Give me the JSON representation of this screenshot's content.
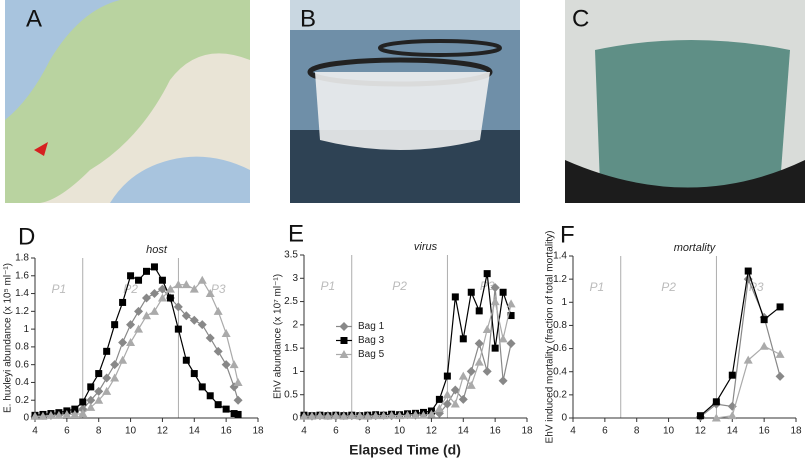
{
  "figure": {
    "panels": [
      "A",
      "B",
      "C"
    ],
    "xlabel": "Elapsed Time (d)"
  },
  "chart_data": [
    {
      "type": "line",
      "panel": "D",
      "annotation": "host",
      "ylabel": "E. huxleyi abundance (x 10⁵ ml⁻¹)",
      "phase_lines": [
        7,
        13
      ],
      "phase_labels": [
        "P1",
        "P2",
        "P3"
      ],
      "xlim": [
        4,
        18
      ],
      "xticks": [
        4,
        6,
        8,
        10,
        12,
        14,
        16,
        18
      ],
      "ylim": [
        0,
        1.8
      ],
      "yticks": [
        0,
        0.2,
        0.4,
        0.6,
        0.8,
        1,
        1.2,
        1.4,
        1.6,
        1.8
      ],
      "x": [
        4,
        4.5,
        5,
        5.5,
        6,
        6.5,
        7,
        7.5,
        8,
        8.5,
        9,
        9.5,
        10,
        10.5,
        11,
        11.5,
        12,
        12.5,
        13,
        13.5,
        14,
        14.5,
        15,
        15.5,
        16,
        16.5,
        16.75
      ],
      "series": [
        {
          "name": "Bag 1",
          "color": "#888888",
          "marker": "diamond",
          "values": [
            0.02,
            0.03,
            0.03,
            0.04,
            0.05,
            0.07,
            0.1,
            0.2,
            0.3,
            0.45,
            0.6,
            0.85,
            1.05,
            1.2,
            1.35,
            1.4,
            1.45,
            1.35,
            1.25,
            1.15,
            1.1,
            1.05,
            0.9,
            0.75,
            0.6,
            0.35,
            0.2
          ]
        },
        {
          "name": "Bag 3",
          "color": "#000000",
          "marker": "square",
          "values": [
            0.03,
            0.04,
            0.05,
            0.06,
            0.08,
            0.1,
            0.18,
            0.35,
            0.5,
            0.75,
            1.05,
            1.3,
            1.6,
            1.55,
            1.65,
            1.7,
            1.55,
            1.35,
            1.0,
            0.65,
            0.5,
            0.35,
            0.25,
            0.15,
            0.1,
            0.05,
            0.04
          ]
        },
        {
          "name": "Bag 5",
          "color": "#aaaaaa",
          "marker": "triangle",
          "values": [
            0.02,
            0.02,
            0.03,
            0.03,
            0.04,
            0.04,
            0.05,
            0.12,
            0.2,
            0.3,
            0.45,
            0.65,
            0.85,
            1.0,
            1.15,
            1.2,
            1.35,
            1.45,
            1.5,
            1.5,
            1.45,
            1.55,
            1.4,
            1.2,
            0.95,
            0.6,
            0.4
          ]
        }
      ]
    },
    {
      "type": "line",
      "panel": "E",
      "annotation": "virus",
      "ylabel": "EhV abundance (x 10⁷ ml⁻¹)",
      "legend": "center-left",
      "phase_lines": [
        7,
        13
      ],
      "phase_labels": [
        "P1",
        "P2",
        "P3"
      ],
      "xlim": [
        4,
        18
      ],
      "xticks": [
        4,
        6,
        8,
        10,
        12,
        14,
        16,
        18
      ],
      "ylim": [
        0,
        3.5
      ],
      "yticks": [
        0,
        0.5,
        1,
        1.5,
        2,
        2.5,
        3,
        3.5
      ],
      "x": [
        4,
        4.5,
        5,
        5.5,
        6,
        6.5,
        7,
        7.5,
        8,
        8.5,
        9,
        9.5,
        10,
        10.5,
        11,
        11.5,
        12,
        12.5,
        13,
        13.5,
        14,
        14.5,
        15,
        15.5,
        16,
        16.5,
        17
      ],
      "series": [
        {
          "name": "Bag 1",
          "color": "#888888",
          "marker": "diamond",
          "values": [
            0.05,
            0.04,
            0.05,
            0.05,
            0.04,
            0.05,
            0.05,
            0.04,
            0.05,
            0.05,
            0.06,
            0.05,
            0.06,
            0.07,
            0.06,
            0.08,
            0.1,
            0.1,
            0.3,
            0.6,
            0.4,
            1.0,
            1.6,
            1.0,
            2.8,
            0.8,
            1.6
          ]
        },
        {
          "name": "Bag 3",
          "color": "#000000",
          "marker": "square",
          "values": [
            0.06,
            0.05,
            0.06,
            0.05,
            0.06,
            0.05,
            0.06,
            0.05,
            0.06,
            0.07,
            0.06,
            0.08,
            0.07,
            0.09,
            0.1,
            0.12,
            0.15,
            0.4,
            0.9,
            2.6,
            1.7,
            2.7,
            2.3,
            3.1,
            1.5,
            2.7,
            2.2
          ]
        },
        {
          "name": "Bag 5",
          "color": "#aaaaaa",
          "marker": "triangle",
          "values": [
            0.04,
            0.04,
            0.05,
            0.04,
            0.05,
            0.04,
            0.05,
            0.05,
            0.04,
            0.05,
            0.05,
            0.06,
            0.05,
            0.06,
            0.07,
            0.06,
            0.08,
            0.2,
            0.5,
            0.3,
            0.9,
            0.7,
            1.2,
            1.9,
            2.5,
            1.7,
            2.45
          ]
        }
      ]
    },
    {
      "type": "line",
      "panel": "F",
      "annotation": "mortality",
      "ylabel": "EhV induced mortality (fraction of total mortality)",
      "phase_lines": [
        7,
        13
      ],
      "phase_labels": [
        "P1",
        "P2",
        "P3"
      ],
      "xlim": [
        4,
        18
      ],
      "xticks": [
        4,
        6,
        8,
        10,
        12,
        14,
        16,
        18
      ],
      "ylim": [
        0,
        1.4
      ],
      "yticks": [
        0,
        0.2,
        0.4,
        0.6,
        0.8,
        1,
        1.2,
        1.4
      ],
      "x": [
        12,
        13,
        14,
        15,
        16,
        17
      ],
      "series": [
        {
          "name": "Bag 1",
          "color": "#888888",
          "marker": "diamond",
          "values": [
            0.01,
            0.12,
            0.1,
            1.2,
            0.87,
            0.36
          ]
        },
        {
          "name": "Bag 3",
          "color": "#000000",
          "marker": "square",
          "values": [
            0.02,
            0.14,
            0.37,
            1.27,
            0.85,
            0.96
          ]
        },
        {
          "name": "Bag 5",
          "color": "#aaaaaa",
          "marker": "triangle",
          "values": [
            null,
            0.0,
            0.02,
            0.5,
            0.62,
            0.55
          ]
        }
      ]
    }
  ]
}
